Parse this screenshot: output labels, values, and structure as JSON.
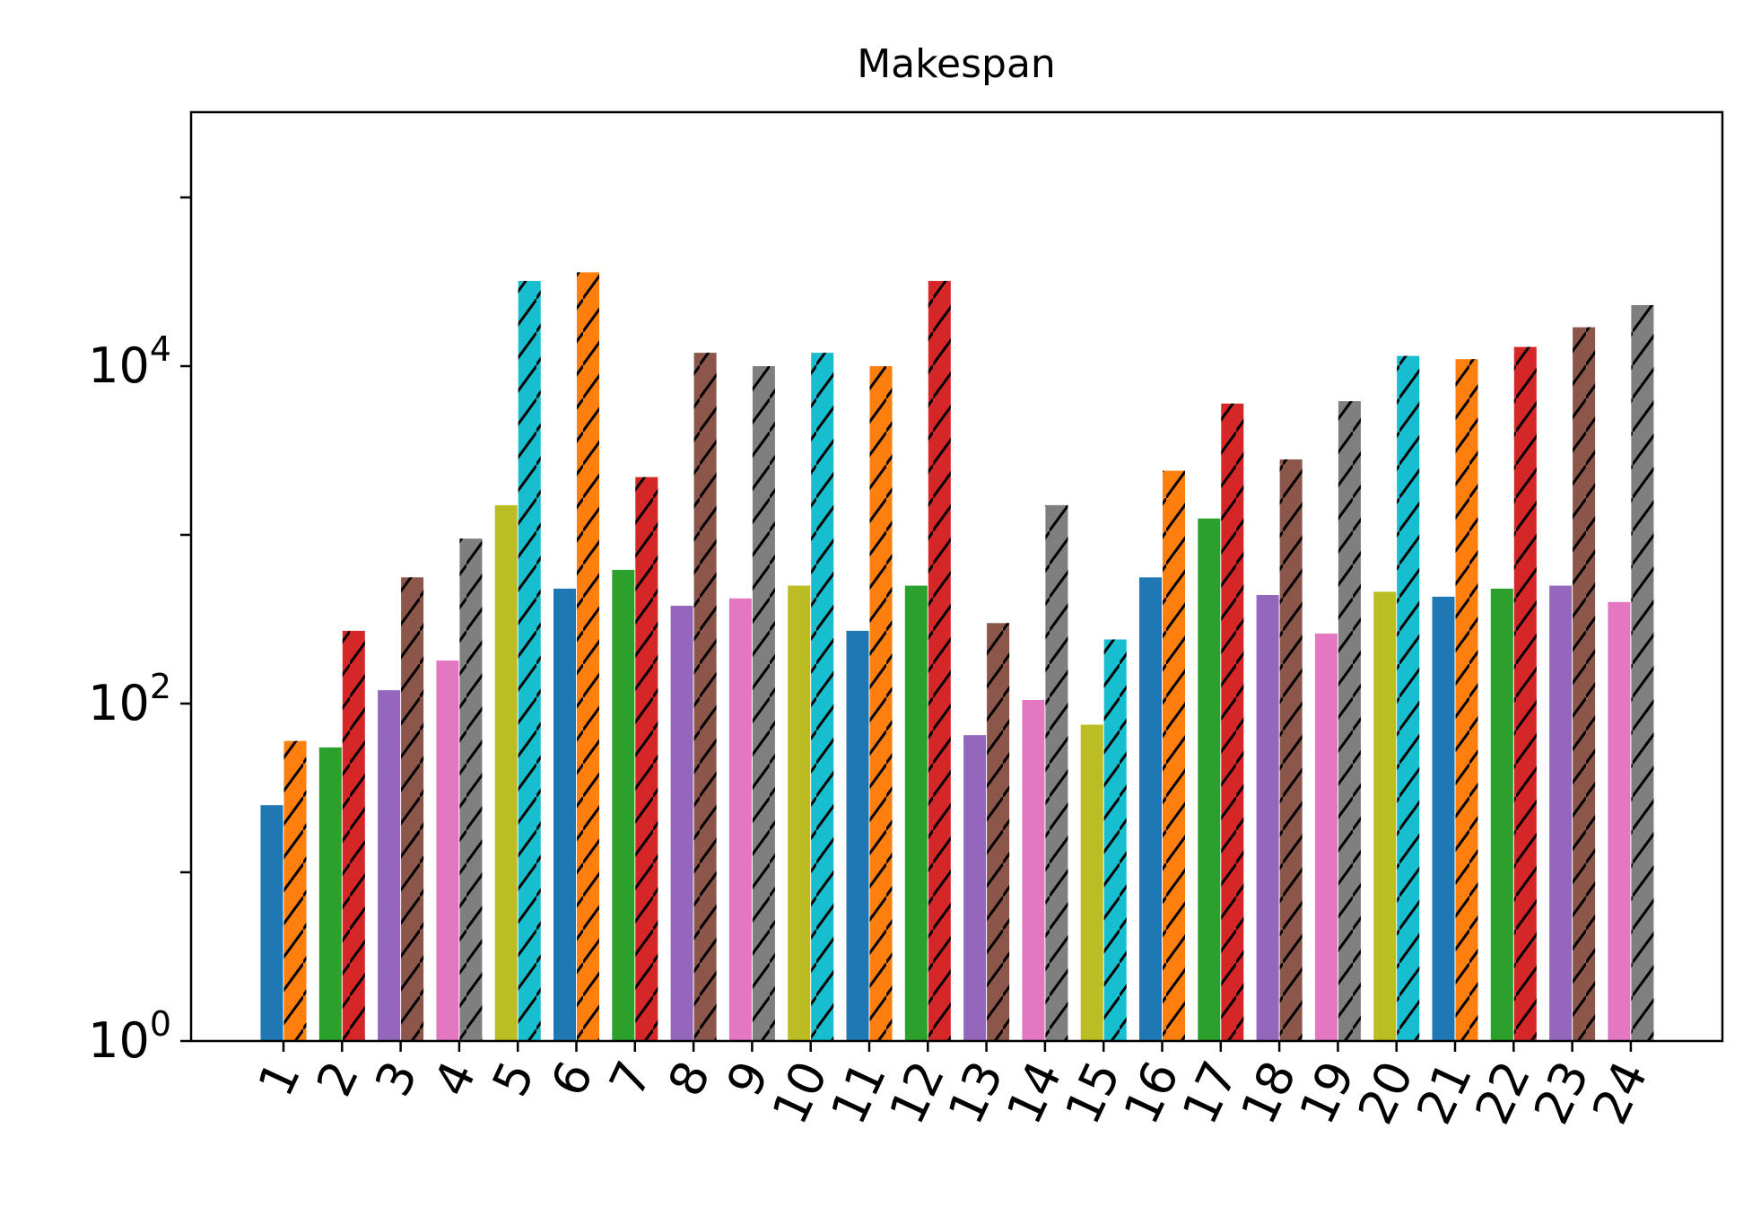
{
  "chart_data": {
    "type": "bar",
    "title": "Makespan",
    "xlabel": "",
    "ylabel": "",
    "yscale": "log",
    "ylim": [
      1,
      500000
    ],
    "yticks": [
      {
        "value": 1,
        "base": "10",
        "exp": "0"
      },
      {
        "value": 100,
        "base": "10",
        "exp": "2"
      },
      {
        "value": 10000,
        "base": "10",
        "exp": "4"
      }
    ],
    "grid": false,
    "legend": "none",
    "categories": [
      "1",
      "2",
      "3",
      "4",
      "5",
      "6",
      "7",
      "8",
      "9",
      "10",
      "11",
      "12",
      "13",
      "14",
      "15",
      "16",
      "17",
      "18",
      "19",
      "20",
      "21",
      "22",
      "23",
      "24"
    ],
    "series": [
      {
        "hatch": "none",
        "values": [
          25,
          55,
          120,
          180,
          1500,
          480,
          620,
          380,
          420,
          500,
          270,
          500,
          65,
          105,
          75,
          560,
          1250,
          440,
          260,
          460,
          430,
          480,
          500,
          400
        ]
      },
      {
        "hatch": "diagonal",
        "values": [
          60,
          270,
          560,
          950,
          32000,
          36000,
          2200,
          12000,
          10000,
          12000,
          10000,
          32000,
          300,
          1500,
          240,
          2400,
          6000,
          2800,
          6200,
          11500,
          11000,
          13000,
          17000,
          23000
        ]
      }
    ],
    "colors": [
      "#1f77b4",
      "#ff7f0e",
      "#2ca02c",
      "#d62728",
      "#9467bd",
      "#8c564b",
      "#e377c2",
      "#7f7f7f",
      "#bcbd22",
      "#17becf"
    ]
  }
}
